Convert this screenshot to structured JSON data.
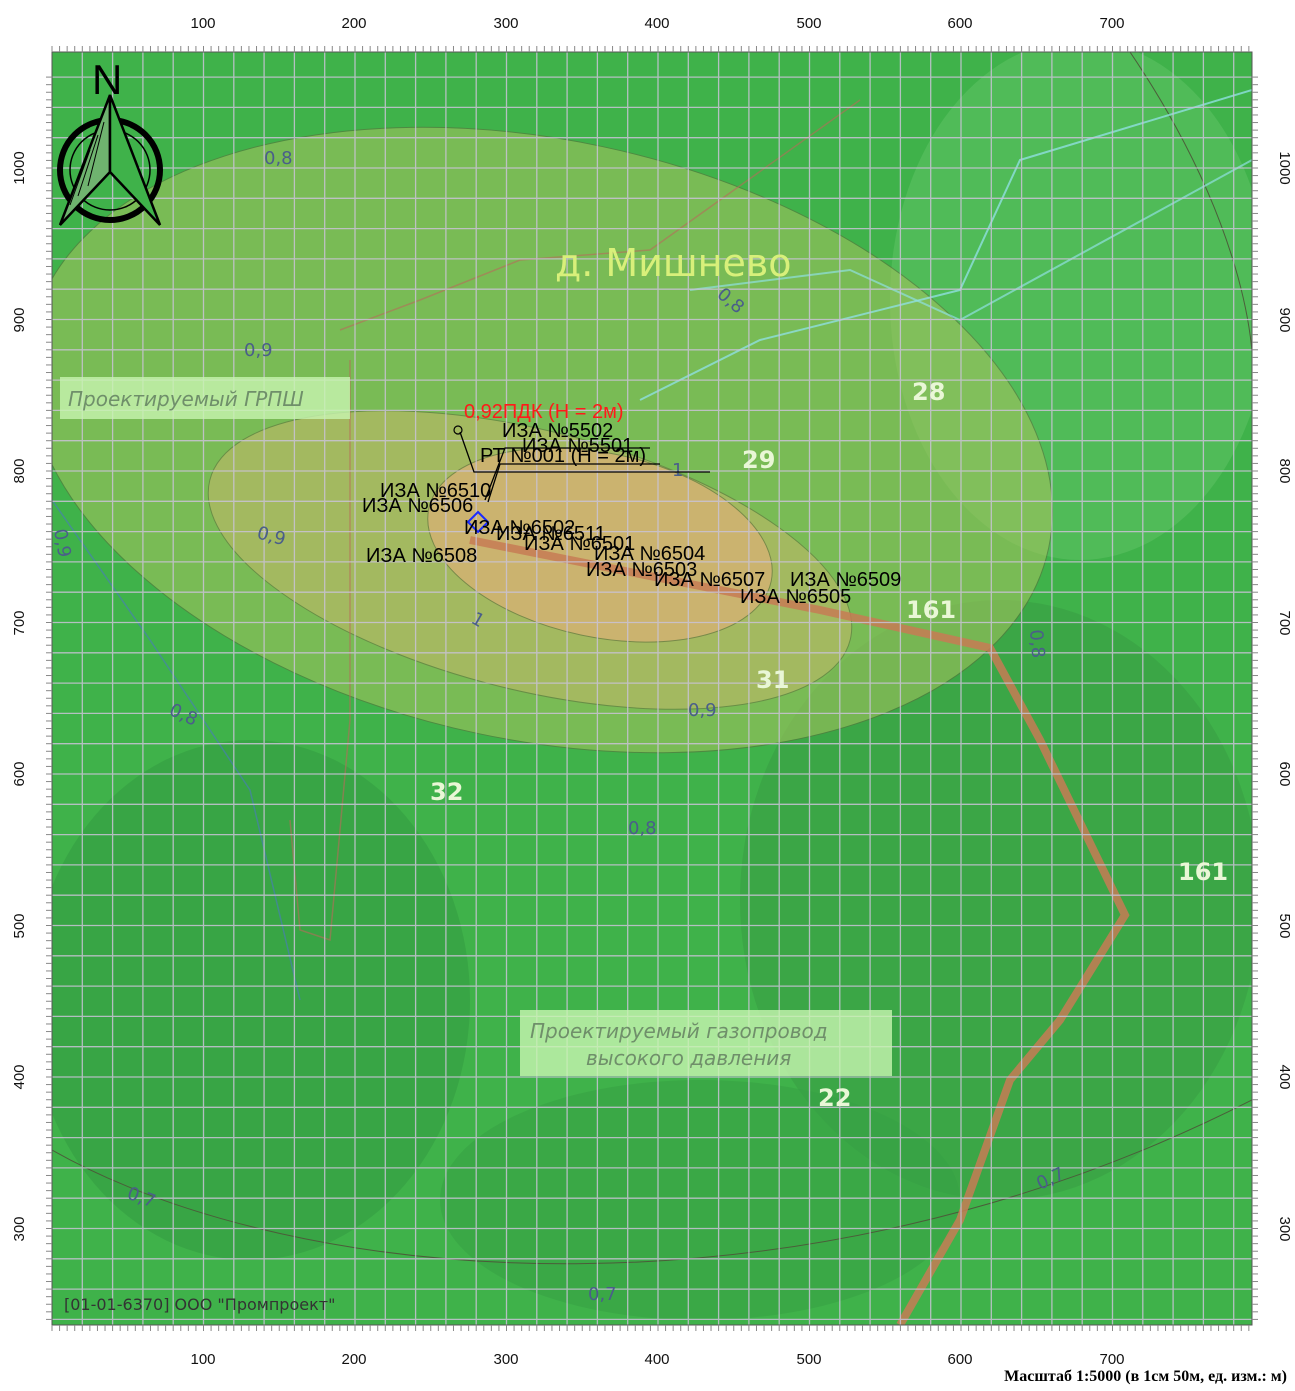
{
  "map": {
    "x_ticks": [
      "100",
      "200",
      "300",
      "400",
      "500",
      "600",
      "700"
    ],
    "y_ticks": [
      "1000",
      "900",
      "800",
      "700",
      "600",
      "500",
      "400",
      "300"
    ],
    "north_label": "N",
    "place_name": "д. Мишнево",
    "project_labels": {
      "grpsh": "Проектируемый ГРПШ",
      "pipeline_line1": "Проектируемый газопровод",
      "pipeline_line2": "высокого давления"
    },
    "isolines": [
      "0,8",
      "0,9",
      "1",
      "0,9",
      "0,8",
      "0,7",
      "0,7",
      "0,7",
      "0,8",
      "0,9",
      "1",
      "0,8",
      "0,8",
      "0,9"
    ],
    "max_label": "0,92ПДК (H = 2м)",
    "rt_label": "РТ №001 (H = 2м)",
    "sources": [
      "ИЗА №5502",
      "ИЗА №5501",
      "ИЗА №6510",
      "ИЗА №6506",
      "ИЗА №6502",
      "ИЗА №6511",
      "ИЗА №6501",
      "ИЗА №6504",
      "ИЗА №6503",
      "ИЗА №6507",
      "ИЗА №6509",
      "ИЗА №6505",
      "ИЗА №6508"
    ],
    "plot_numbers": [
      "28",
      "29",
      "161",
      "31",
      "32",
      "161",
      "22"
    ],
    "copyright": "[01-01-6370] ООО \"Промпроект\"",
    "scale": "Масштаб 1:5000 (в 1см 50м, ед. изм.: м)",
    "colors": {
      "forest": "#3fb24a",
      "zone_outer": "#a9c45e",
      "zone_mid": "#c7b86a",
      "zone_core": "#e6b07a",
      "pipeline": "#c77b55",
      "grid": "#c9c3d6"
    }
  }
}
